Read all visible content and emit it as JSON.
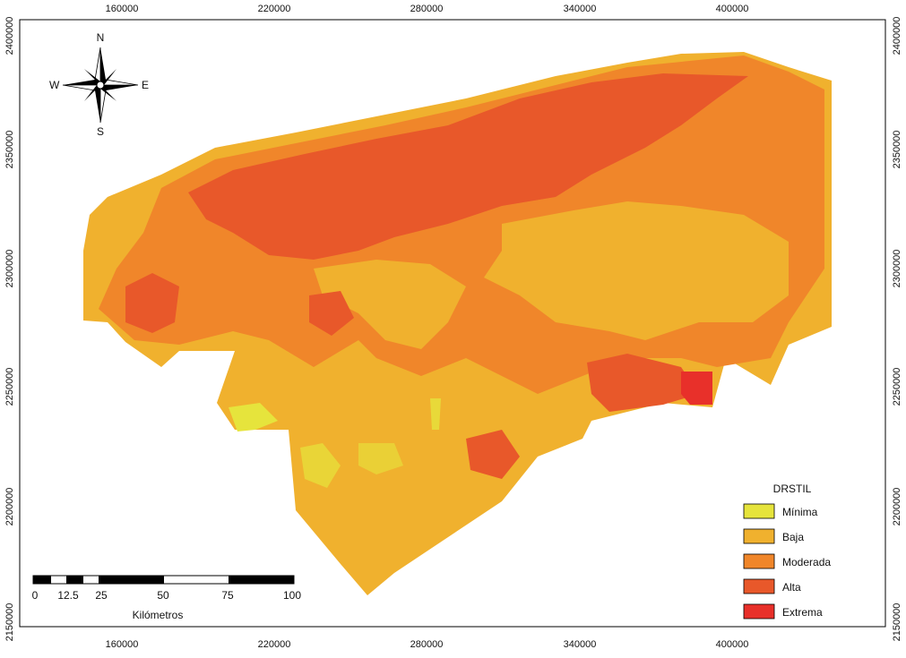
{
  "x_ticks": [
    160000,
    220000,
    280000,
    340000,
    400000
  ],
  "y_ticks": [
    2400000,
    2350000,
    2300000,
    2250000,
    2200000,
    2150000
  ],
  "compass": {
    "north": "N",
    "south": "S",
    "east": "E",
    "west": "W"
  },
  "scale_bar": {
    "labels": [
      0,
      12.5,
      25,
      50,
      75,
      100
    ],
    "unit": "Kilómetros"
  },
  "legend": {
    "title": "DRSTIL",
    "items": [
      {
        "label": "Mínima",
        "color": "#e6e43c"
      },
      {
        "label": "Baja",
        "color": "#f0b12e"
      },
      {
        "label": "Moderada",
        "color": "#f0862a"
      },
      {
        "label": "Alta",
        "color": "#e8582a"
      },
      {
        "label": "Extrema",
        "color": "#e8302a"
      }
    ]
  }
}
